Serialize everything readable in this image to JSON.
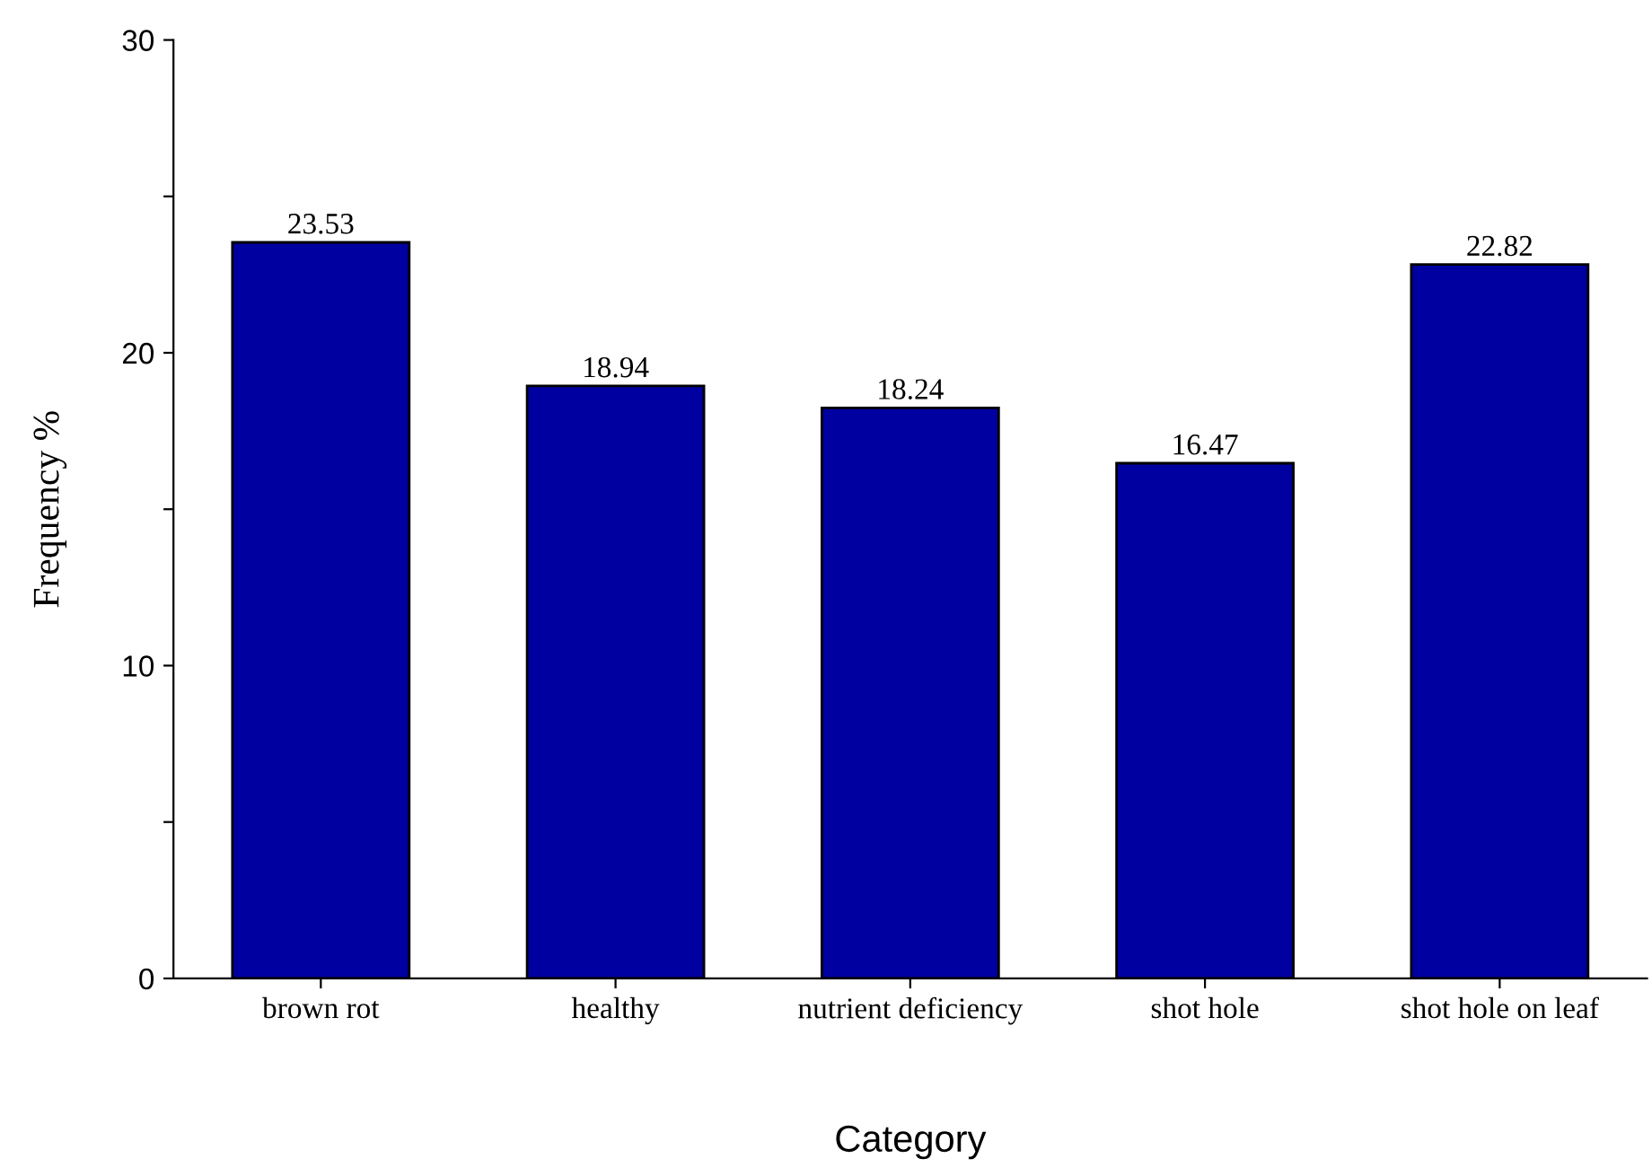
{
  "chart_data": {
    "type": "bar",
    "xlabel": "Category",
    "ylabel": "Frequency %",
    "categories": [
      "brown rot",
      "healthy",
      "nutrient deficiency",
      "shot hole",
      "shot hole on leaf"
    ],
    "values": [
      23.53,
      18.94,
      18.24,
      16.47,
      22.82
    ],
    "color": "#0000a0",
    "ylim": [
      0,
      30
    ],
    "yticks": [
      0,
      {
        "value": 5,
        "label": null
      },
      10,
      {
        "value": 15,
        "label": null
      },
      20,
      {
        "value": 25,
        "label": null
      },
      30
    ],
    "data_labels": true,
    "grid": false,
    "legend": false
  }
}
